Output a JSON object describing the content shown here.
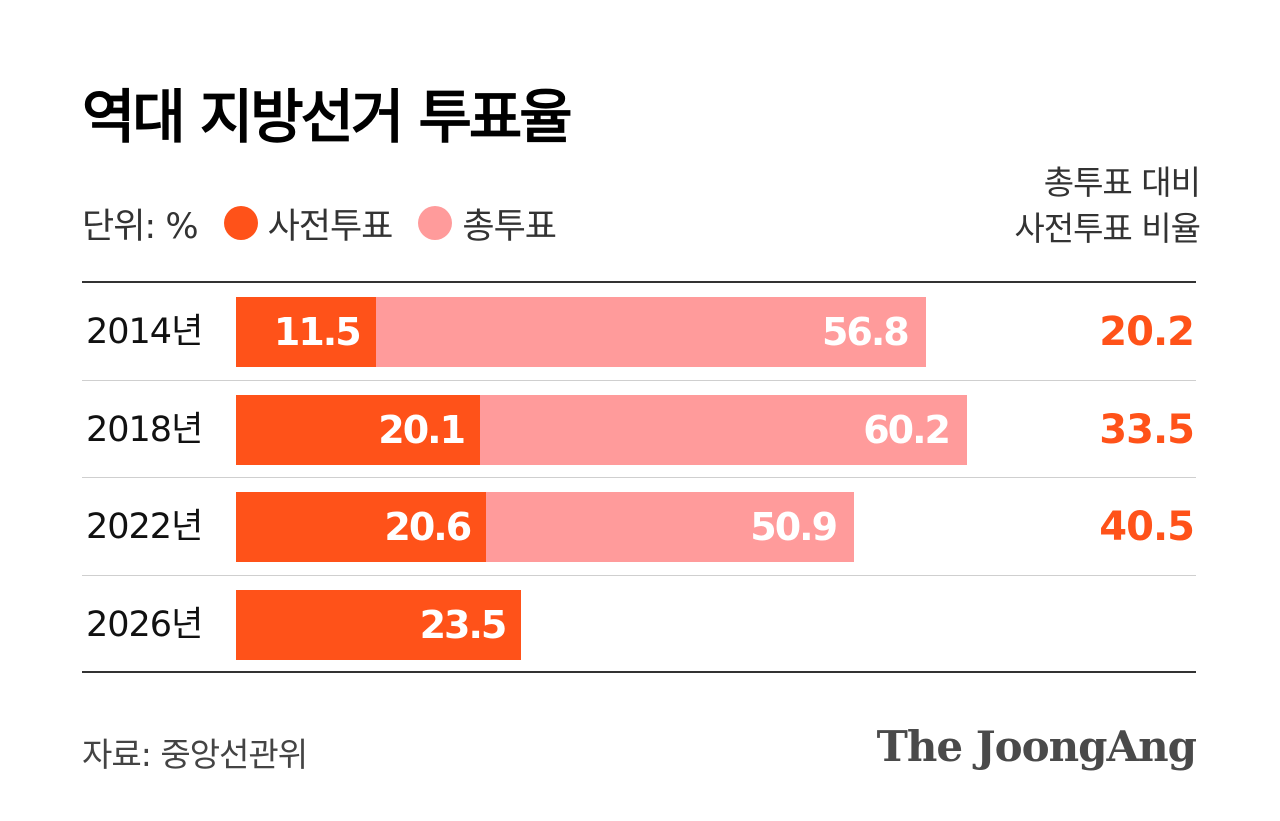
{
  "title": "역대 지방선거 투표율",
  "legend": {
    "unit": "단위: %",
    "items": [
      {
        "label": "사전투표",
        "color": "#FF5219"
      },
      {
        "label": "총투표",
        "color": "#FF9B9B"
      }
    ]
  },
  "ratio_header": {
    "line1": "총투표 대비",
    "line2": "사전투표 비율"
  },
  "source": "자료: 중앙선관위",
  "logo": "The JoongAng",
  "colors": {
    "early": "#FF5219",
    "total": "#FF9B9B",
    "ratio_text": "#FF5219"
  },
  "chart_data": {
    "type": "bar",
    "orientation": "horizontal",
    "title": "역대 지방선거 투표율",
    "categories": [
      "2014년",
      "2018년",
      "2022년",
      "2026년"
    ],
    "series": [
      {
        "name": "사전투표",
        "values": [
          11.5,
          20.1,
          20.6,
          23.5
        ]
      },
      {
        "name": "총투표",
        "values": [
          56.8,
          60.2,
          50.9,
          null
        ]
      }
    ],
    "ratio": {
      "name": "총투표 대비 사전투표 비율",
      "values": [
        20.2,
        33.5,
        40.5,
        null
      ]
    },
    "xlim": [
      0,
      60.2
    ],
    "grid": false,
    "legend_position": "top-left"
  }
}
